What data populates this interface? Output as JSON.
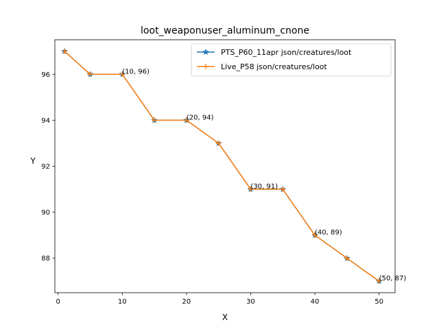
{
  "chart_data": {
    "type": "line",
    "title": "loot_weaponuser_aluminum_cnone",
    "xlabel": "X",
    "ylabel": "Y",
    "xlim": [
      -0.5,
      52.5
    ],
    "ylim": [
      86.5,
      97.5
    ],
    "x_ticks": [
      0,
      10,
      20,
      30,
      40,
      50
    ],
    "y_ticks": [
      88,
      90,
      92,
      94,
      96
    ],
    "x_tick_labels": [
      "0",
      "10",
      "20",
      "30",
      "40",
      "50"
    ],
    "y_tick_labels": [
      "88",
      "90",
      "92",
      "94",
      "96"
    ],
    "legend_position": "top-right",
    "grid": false,
    "series": [
      {
        "name": "PTS_P60_11apr json/creatures/loot",
        "color": "#1f77b4",
        "marker": "star",
        "x": [
          1,
          5,
          10,
          15,
          20,
          25,
          30,
          35,
          40,
          45,
          50
        ],
        "y": [
          97,
          96,
          96,
          94,
          94,
          93,
          91,
          91,
          89,
          88,
          87
        ]
      },
      {
        "name": "Live_P58 json/creatures/loot",
        "color": "#ff7f0e",
        "marker": "plus",
        "x": [
          1,
          5,
          10,
          15,
          20,
          25,
          30,
          35,
          40,
          45,
          50
        ],
        "y": [
          97,
          96,
          96,
          94,
          94,
          93,
          91,
          91,
          89,
          88,
          87
        ]
      }
    ],
    "annotations": [
      {
        "x": 10,
        "y": 96,
        "text": "(10, 96)"
      },
      {
        "x": 20,
        "y": 94,
        "text": "(20, 94)"
      },
      {
        "x": 30,
        "y": 91,
        "text": "(30, 91)"
      },
      {
        "x": 40,
        "y": 89,
        "text": "(40, 89)"
      },
      {
        "x": 50,
        "y": 87,
        "text": "(50, 87)"
      }
    ]
  }
}
